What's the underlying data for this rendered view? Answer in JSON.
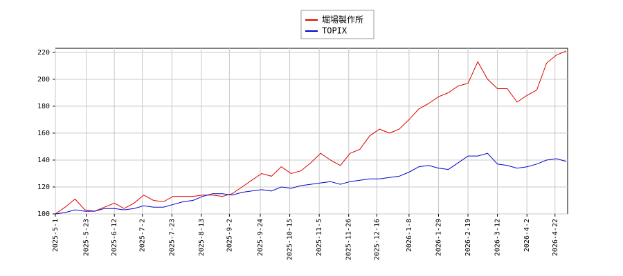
{
  "chart_data": {
    "type": "line",
    "x": [
      "2025-5-1",
      "2025-5-8",
      "2025-5-15",
      "2025-5-22",
      "2025-5-29",
      "2025-6-5",
      "2025-6-12",
      "2025-6-19",
      "2025-6-26",
      "2025-7-3",
      "2025-7-10",
      "2025-7-17",
      "2025-7-24",
      "2025-7-31",
      "2025-8-7",
      "2025-8-14",
      "2025-8-21",
      "2025-8-28",
      "2025-9-4",
      "2025-9-11",
      "2025-9-18",
      "2025-9-25",
      "2025-10-2",
      "2025-10-9",
      "2025-10-16",
      "2025-10-23",
      "2025-10-30",
      "2025-11-6",
      "2025-11-13",
      "2025-11-20",
      "2025-11-27",
      "2025-12-4",
      "2025-12-11",
      "2025-12-18",
      "2025-12-25",
      "2026-1-1",
      "2026-1-8",
      "2026-1-15",
      "2026-1-22",
      "2026-1-29",
      "2026-2-5",
      "2026-2-12",
      "2026-2-19",
      "2026-2-26",
      "2026-3-5",
      "2026-3-12",
      "2026-3-19",
      "2026-3-26",
      "2026-4-2",
      "2026-4-9",
      "2026-4-16",
      "2026-4-23",
      "2026-4-30"
    ],
    "series": [
      {
        "name": "堀場製作所",
        "color": "#dd0000",
        "values": [
          100,
          105,
          111,
          103,
          102,
          105,
          108,
          104,
          108,
          114,
          110,
          109,
          113,
          113,
          113,
          114,
          114,
          113,
          115,
          120,
          125,
          130,
          128,
          135,
          130,
          132,
          138,
          145,
          140,
          136,
          145,
          148,
          158,
          163,
          160,
          163,
          170,
          178,
          182,
          187,
          190,
          195,
          197,
          213,
          200,
          193,
          193,
          183,
          188,
          192,
          212,
          218,
          221
        ]
      },
      {
        "name": "TOPIX",
        "color": "#0000cc",
        "values": [
          100,
          101,
          103,
          102,
          102,
          104,
          104,
          103,
          104,
          106,
          105,
          105,
          107,
          109,
          110,
          113,
          115,
          115,
          114,
          116,
          117,
          118,
          117,
          120,
          119,
          121,
          122,
          123,
          124,
          122,
          124,
          125,
          126,
          126,
          127,
          128,
          131,
          135,
          136,
          134,
          133,
          138,
          143,
          143,
          145,
          137,
          136,
          134,
          135,
          137,
          140,
          141,
          139
        ]
      }
    ],
    "xlim": [
      "2025-5-1",
      "2026-5-1"
    ],
    "xticks": [
      "2025-5-1",
      "2025-5-23",
      "2025-6-12",
      "2025-7-2",
      "2025-7-23",
      "2025-8-13",
      "2025-9-2",
      "2025-9-24",
      "2025-10-15",
      "2025-11-5",
      "2025-11-26",
      "2025-12-16",
      "2026-1-8",
      "2026-1-29",
      "2026-2-19",
      "2026-3-12",
      "2026-4-2",
      "2026-4-22"
    ],
    "ylim": [
      100,
      223
    ],
    "yticks": [
      100,
      120,
      140,
      160,
      180,
      200,
      220
    ],
    "grid": true,
    "legend": "top"
  }
}
